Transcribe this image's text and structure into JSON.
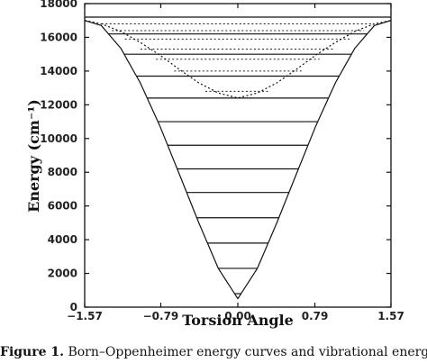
{
  "chart_data": {
    "type": "line",
    "xlabel": "Torsion Angle",
    "ylabel": "Energy (cm⁻¹)",
    "xlim": [
      -1.57,
      1.57
    ],
    "ylim": [
      0,
      18000
    ],
    "x_ticks": [
      -1.57,
      -0.79,
      0.0,
      0.79,
      1.57
    ],
    "x_tick_labels": [
      "−1.57",
      "−0.79",
      "0.00",
      "0.79",
      "1.57"
    ],
    "y_ticks": [
      0,
      2000,
      4000,
      6000,
      8000,
      10000,
      12000,
      14000,
      16000,
      18000
    ],
    "y_tick_labels": [
      "0",
      "2000",
      "4000",
      "6000",
      "8000",
      "10000",
      "12000",
      "14000",
      "16000",
      "18000"
    ],
    "grid": false,
    "series": [
      {
        "style": "solid",
        "x": [
          -1.57,
          -1.4,
          -1.2,
          -1.0,
          -0.8,
          -0.6,
          -0.4,
          -0.2,
          0.0,
          0.2,
          0.4,
          0.6,
          0.8,
          1.0,
          1.2,
          1.4,
          1.57
        ],
        "y": [
          17000,
          16700,
          15350,
          13300,
          10750,
          7900,
          5000,
          2300,
          500,
          2300,
          5000,
          7900,
          10750,
          13300,
          15350,
          16700,
          17000
        ]
      },
      {
        "style": "dotted",
        "x": [
          -1.57,
          -1.4,
          -1.2,
          -1.0,
          -0.8,
          -0.6,
          -0.4,
          -0.2,
          0.0,
          0.2,
          0.4,
          0.6,
          0.8,
          1.0,
          1.2,
          1.4,
          1.57
        ],
        "y": [
          17000,
          16800,
          16350,
          15700,
          14950,
          14100,
          13300,
          12700,
          12400,
          12700,
          13300,
          14100,
          14950,
          15700,
          16350,
          16800,
          17000
        ]
      }
    ],
    "energy_levels_solid": [
      800,
      2300,
      3800,
      5300,
      6800,
      8200,
      9600,
      11000,
      12400,
      13700,
      15000,
      16200,
      17200,
      18100
    ],
    "energy_levels_dotted": [
      12800,
      14000,
      14700,
      15300,
      15900,
      16400,
      16800
    ],
    "caption_label": "Figure 1.",
    "caption_text": "Born–Oppenheimer energy curves and vibrational energy levels"
  }
}
